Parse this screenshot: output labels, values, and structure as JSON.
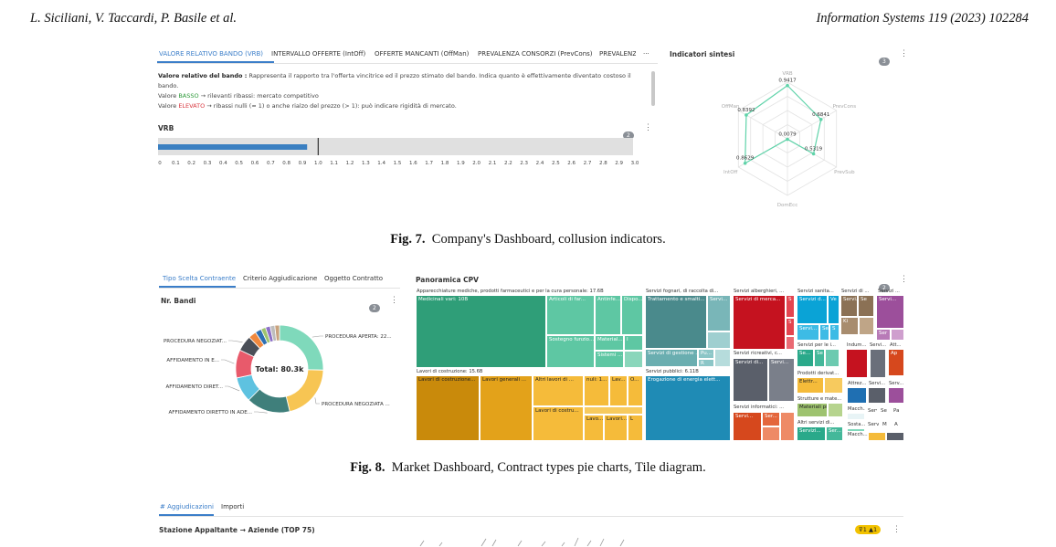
{
  "header": {
    "authors": "L. Siciliani, V. Taccardi, P. Basile et al.",
    "journal": "Information Systems 119 (2023) 102284"
  },
  "fig7": {
    "tabs": [
      "VALORE RELATIVO BANDO (VRB)",
      "INTERVALLO OFFERTE (IntOff)",
      "OFFERTE MANCANTI (OffMan)",
      "PREVALENZA CONSORZI (PrevCons)",
      "PREVALENZ",
      "···"
    ],
    "desc_bold": "Valore relativo del bando :",
    "desc_text": "Rappresenta il rapporto tra l'offerta vincitrice ed il prezzo stimato del bando. Indica quanto è effettivamente diventato costoso il bando.",
    "line_basso_pre": "Valore ",
    "line_basso_word": "BASSO",
    "line_basso_post": " → rilevanti ribassi: mercato competitivo",
    "line_elevato_pre": "Valore ",
    "line_elevato_word": "ELEVATO",
    "line_elevato_post": " → ribassi nulli (≈ 1) o anche rialzo del prezzo (> 1): può indicare rigidità di mercato.",
    "vrb_title": "VRB",
    "vrb_badge": "2",
    "vrb_value": 0.93,
    "vrb_marker": 1.0,
    "vrb_ticks": [
      "0",
      "0.1",
      "0.2",
      "0.3",
      "0.4",
      "0.5",
      "0.6",
      "0.7",
      "0.8",
      "0.9",
      "1.0",
      "1.1",
      "1.2",
      "1.3",
      "1.4",
      "1.5",
      "1.6",
      "1.7",
      "1.8",
      "1.9",
      "2.0",
      "2.1",
      "2.2",
      "2.3",
      "2.4",
      "2.5",
      "2.6",
      "2.7",
      "2.8",
      "2.9",
      "3.0"
    ],
    "radar_title": "Indicatori sintesi",
    "radar_badge": "3",
    "caption_label": "Fig. 7.",
    "caption_text": "Company's Dashboard, collusion indicators."
  },
  "chart_data": [
    {
      "type": "radar",
      "title": "Indicatori sintesi",
      "axes": [
        "VRB",
        "PrevCons",
        "PrevSub",
        "DomEcc",
        "IntOff",
        "OffMan"
      ],
      "values": [
        0.9417,
        0.6841,
        0.5319,
        0.0079,
        0.8629,
        0.8392
      ],
      "labels": [
        "0.9417",
        "0.6841",
        "0.5319",
        "0.0079",
        "0.8629",
        "0.8392"
      ],
      "color": "#5fd3a9"
    },
    {
      "type": "pie",
      "title": "Nr. Bandi",
      "center_label": "Total: 80.3k",
      "slices": [
        {
          "name": "PROCEDURA APERTA: 22...",
          "value": 22,
          "color": "#7fd9bb"
        },
        {
          "name": "PROCEDURA NEGOZIATA ...",
          "value": 18,
          "color": "#f7c553"
        },
        {
          "name": "AFFIDAMENTO DIRETTO IN ADE...",
          "value": 14,
          "color": "#3f7f7b"
        },
        {
          "name": "AFFIDAMENTO DIRET...",
          "value": 8,
          "color": "#5ec2e0"
        },
        {
          "name": "AFFIDAMENTO IN E...",
          "value": 9,
          "color": "#e85a6b"
        },
        {
          "name": "PROCEDURA NEGOZIAT...",
          "value": 5,
          "color": "#4a4f58"
        },
        {
          "name": "",
          "value": 2.5,
          "color": "#f0883e"
        },
        {
          "name": "",
          "value": 2,
          "color": "#2d6fb3"
        },
        {
          "name": "",
          "value": 1.5,
          "color": "#9ec36f"
        },
        {
          "name": "",
          "value": 1.5,
          "color": "#8b6fc7"
        },
        {
          "name": "",
          "value": 1.5,
          "color": "#bdbdbd"
        },
        {
          "name": "",
          "value": 1.5,
          "color": "#c9a27e"
        }
      ]
    },
    {
      "type": "treemap",
      "title": "Panoramica CPV"
    }
  ],
  "fig8": {
    "tabs": [
      "Tipo Scelta Contraente",
      "Criterio Aggiudicazione",
      "Oggetto Contratto"
    ],
    "pie_title": "Nr. Bandi",
    "pie_badge": "2",
    "tm_title": "Panoramica CPV",
    "tm_badge": "2",
    "tm_group1": "Apparecchiature mediche, prodotti farmaceutici e per la cura personale: 17.6B",
    "tm_group2": "Lavori di costruzione: 15.6B",
    "tm_group3": "Servizi fognari, di raccolta di...",
    "tm_group4": "Servizi pubblici: 6.11B",
    "tm_group5": "Servizi alberghieri, ...",
    "tm_group6": "Servizi ricreativi, c...",
    "tm_group7": "Servizi informatici: ...",
    "tm_group8": "Servizi sanita...",
    "tm_group9": "Servizi di ...",
    "tm_group10": "Servizi ...",
    "tm_group11": "Servizi per le i...",
    "tm_group12": "Indum...",
    "tm_group13": "Servi...",
    "tm_group14": "Att...",
    "tm_group15": "Prodotti derivat...",
    "tm_group16": "Strutture e mate...",
    "tm_group17": "Altri servizi di...",
    "tm_group18": "Attrez...",
    "tm_group19": "Servi...",
    "tm_group20": "Serv...",
    "tm_group21": "Sosta...",
    "tm_group22": "Macch...",
    "cells": {
      "c1": "Medicinali vari: 10B",
      "c2": "Articoli di far...",
      "c3": "Antinfe...",
      "c4": "Dispo...",
      "c5": "Sostegno funzio...",
      "c6": "Material...",
      "c7": "I",
      "c8": "Sistemi ...",
      "c9": "Lavori di costruzione...",
      "c10": "Lavori generali ...",
      "c11": "Altri lavori di ...",
      "c12": "nuli: 1...",
      "c13": "Lav...",
      "c14": "O...",
      "c15": "Lavori di costru...",
      "c16": "Lavo...",
      "c17": "Lavori...",
      "c18": "L",
      "c19": "Trattamento e smalti...",
      "c20": "Servi...",
      "c21": "Servizi di gestione ...",
      "c22": "Pu...",
      "c23": "R",
      "c24": "Erogazione di energia elett...",
      "c25": "Servizi di merca...",
      "c26": "S",
      "c27": "S",
      "c28": "Servizi di...",
      "c29": "Servi...",
      "c30": "Servi...",
      "c31": "Ser...",
      "c32": "Servizi d...",
      "c33": "Ve",
      "c34": "Servi...",
      "c35": "Se",
      "c36": "S",
      "c37": "Servi...",
      "c38": "Se",
      "c39": "Servi...",
      "c40": "Se...",
      "c41": "Ki",
      "c42": "Elettr...",
      "c43": "Ap",
      "c44": "Ser",
      "c45": "Materiali pi...",
      "c46": "Servizi...",
      "c47": "Ser...",
      "c48": "Servizi...",
      "c49": "Se",
      "c50": "Serv...",
      "c51": "Pa",
      "c52": "M",
      "c53": "A"
    },
    "caption_label": "Fig. 8.",
    "caption_text": "Market Dashboard, Contract types pie charts, Tile diagram."
  },
  "fig9": {
    "tabs": [
      "# Aggiudicazioni",
      "Importi"
    ],
    "title": "Stazione Appaltante → Aziende (TOP 75)",
    "badge_filter": "1",
    "badge_warn": "1"
  }
}
